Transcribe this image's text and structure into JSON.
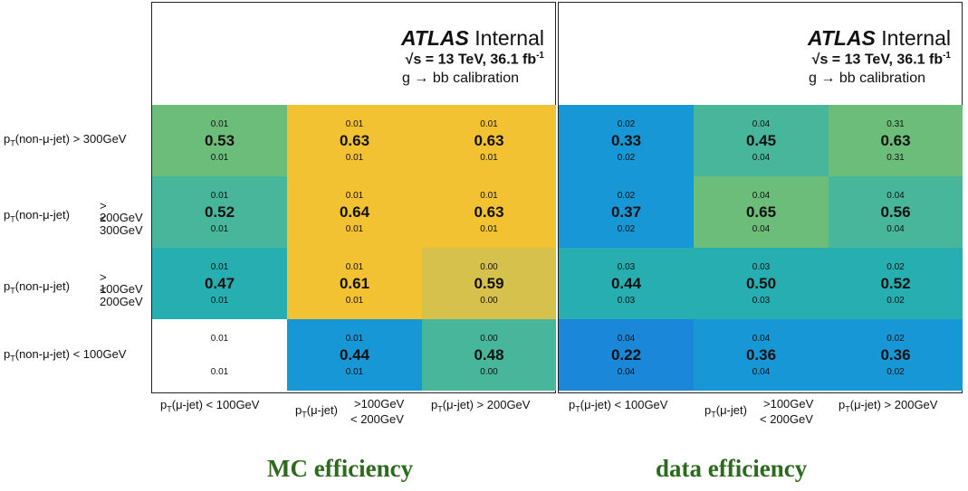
{
  "header": {
    "atlas_bold": "ATLAS",
    "atlas_rest": " Internal",
    "energy": "√s = 13 TeV, 36.1 fb",
    "energy_sup": "-1",
    "calibration": "g → bb calibration"
  },
  "row_labels": [
    {
      "main": "p",
      "sub": "T",
      "rest": "(non-μ-jet) > 300GeV",
      "line2": ""
    },
    {
      "main": "p",
      "sub": "T",
      "rest": "(non-μ-jet)",
      "line1": "> 200GeV",
      "line2": "< 300GeV"
    },
    {
      "main": "p",
      "sub": "T",
      "rest": "(non-μ-jet)",
      "line1": "> 100GeV",
      "line2": "< 200GeV"
    },
    {
      "main": "p",
      "sub": "T",
      "rest": "(non-μ-jet) < 100GeV",
      "line2": ""
    }
  ],
  "col_labels": [
    {
      "p": "p",
      "sub": "T",
      "rest": "(μ-jet) < 100GeV",
      "line2": ""
    },
    {
      "p": "p",
      "sub": "T",
      "rest": "(μ-jet)",
      "line1": ">100GeV",
      "line2": "< 200GeV"
    },
    {
      "p": "p",
      "sub": "T",
      "rest": "(μ-jet) > 200GeV",
      "line2": ""
    }
  ],
  "captions": {
    "mc": "MC efficiency",
    "data": "data efficiency"
  },
  "colors": {
    "yellow": "#f3c232",
    "olive": "#d6c14c",
    "green": "#6cbd7a",
    "teal_green": "#47b69a",
    "teal": "#27aeb0",
    "blue": "#1897d6",
    "blue_dark": "#1a87d9",
    "white": "#ffffff",
    "caption": "#2e6a1e"
  },
  "chart_data": [
    {
      "type": "heatmap",
      "title": "MC efficiency",
      "rows": [
        "> 300GeV",
        "200-300GeV",
        "100-200GeV",
        "< 100GeV"
      ],
      "cols": [
        "< 100GeV",
        "100-200GeV",
        "> 200GeV"
      ],
      "values": [
        [
          0.53,
          0.63,
          0.63
        ],
        [
          0.52,
          0.64,
          0.63
        ],
        [
          0.47,
          0.61,
          0.59
        ],
        [
          null,
          0.44,
          0.48
        ]
      ],
      "up_err": [
        [
          "0.01",
          "0.01",
          "0.01"
        ],
        [
          "0.01",
          "0.01",
          "0.01"
        ],
        [
          "0.01",
          "0.01",
          "0.00"
        ],
        [
          "0.01",
          "0.01",
          "0.00"
        ]
      ],
      "down_err": [
        [
          "0.01",
          "0.01",
          "0.01"
        ],
        [
          "0.01",
          "0.01",
          "0.01"
        ],
        [
          "0.01",
          "0.01",
          "0.00"
        ],
        [
          "0.01",
          "0.01",
          "0.00"
        ]
      ],
      "cell_colors": [
        [
          "green",
          "yellow",
          "yellow"
        ],
        [
          "teal_green",
          "yellow",
          "yellow"
        ],
        [
          "teal",
          "yellow",
          "olive"
        ],
        [
          "white",
          "blue",
          "teal_green"
        ]
      ]
    },
    {
      "type": "heatmap",
      "title": "data efficiency",
      "rows": [
        "> 300GeV",
        "200-300GeV",
        "100-200GeV",
        "< 100GeV"
      ],
      "cols": [
        "< 100GeV",
        "100-200GeV",
        "> 200GeV"
      ],
      "values": [
        [
          0.33,
          0.45,
          0.63
        ],
        [
          0.37,
          0.65,
          0.56
        ],
        [
          0.44,
          0.5,
          0.52
        ],
        [
          0.22,
          0.36,
          0.36
        ]
      ],
      "value_text": [
        [
          "0.33",
          "0.45",
          "0.63"
        ],
        [
          "0.37",
          "0.65",
          "0.56"
        ],
        [
          "0.44",
          "0.50",
          "0.52"
        ],
        [
          "0.22",
          "0.36",
          "0.36"
        ]
      ],
      "up_err": [
        [
          "0.02",
          "0.04",
          "0.31"
        ],
        [
          "0.02",
          "0.04",
          "0.04"
        ],
        [
          "0.03",
          "0.03",
          "0.02"
        ],
        [
          "0.04",
          "0.04",
          "0.02"
        ]
      ],
      "down_err": [
        [
          "0.02",
          "0.04",
          "0.31"
        ],
        [
          "0.02",
          "0.04",
          "0.04"
        ],
        [
          "0.03",
          "0.03",
          "0.02"
        ],
        [
          "0.04",
          "0.04",
          "0.02"
        ]
      ],
      "cell_colors": [
        [
          "blue",
          "teal_green",
          "green"
        ],
        [
          "blue",
          "green",
          "teal_green"
        ],
        [
          "teal",
          "teal",
          "teal"
        ],
        [
          "blue_dark",
          "blue",
          "blue"
        ]
      ]
    }
  ]
}
